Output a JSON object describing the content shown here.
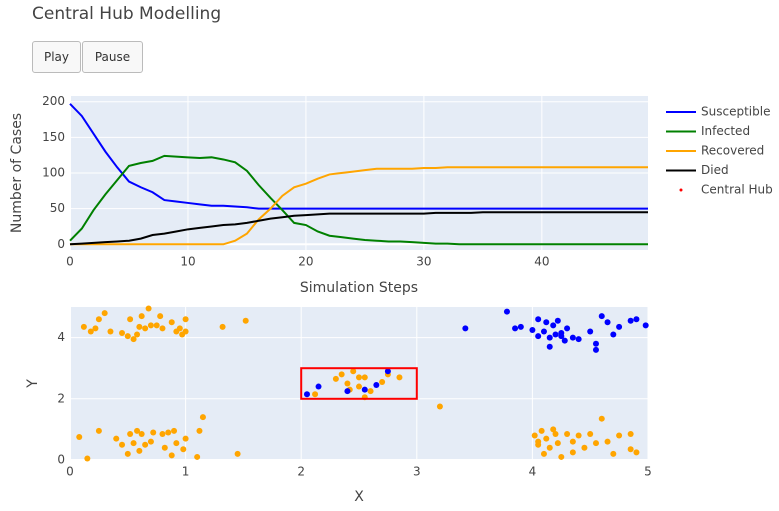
{
  "title": "Central Hub Modelling",
  "buttons": [
    "Play",
    "Pause"
  ],
  "chart_data": [
    {
      "type": "line",
      "xlabel": "Simulation Steps",
      "ylabel": "Number of Cases",
      "x": [
        0,
        1,
        2,
        3,
        4,
        5,
        6,
        7,
        8,
        9,
        10,
        11,
        12,
        13,
        14,
        15,
        16,
        17,
        18,
        19,
        20,
        21,
        22,
        23,
        24,
        25,
        26,
        27,
        28,
        29,
        30,
        31,
        32,
        33,
        34,
        35,
        36,
        37,
        38,
        39,
        40,
        41,
        42,
        43,
        44,
        45,
        46,
        47,
        48,
        49
      ],
      "xlim": [
        0,
        49
      ],
      "xticks": [
        0,
        10,
        20,
        30,
        40
      ],
      "ylim": [
        -8,
        208
      ],
      "yticks": [
        0,
        50,
        100,
        150,
        200
      ],
      "grid": true,
      "series": [
        {
          "name": "Susceptible",
          "color": "#0000ff",
          "values": [
            197,
            180,
            155,
            130,
            108,
            88,
            80,
            73,
            62,
            60,
            58,
            56,
            54,
            54,
            53,
            52,
            50,
            50,
            50,
            50,
            50,
            50,
            50,
            50,
            50,
            50,
            50,
            50,
            50,
            50,
            50,
            50,
            50,
            50,
            50,
            50,
            50,
            50,
            50,
            50,
            50,
            50,
            50,
            50,
            50,
            50,
            50,
            50,
            50,
            50
          ]
        },
        {
          "name": "Infected",
          "color": "#008000",
          "values": [
            5,
            22,
            48,
            70,
            90,
            110,
            114,
            117,
            124,
            123,
            122,
            121,
            122,
            119,
            115,
            103,
            83,
            65,
            48,
            30,
            27,
            18,
            12,
            10,
            8,
            6,
            5,
            4,
            4,
            3,
            2,
            1,
            1,
            0,
            0,
            0,
            0,
            0,
            0,
            0,
            0,
            0,
            0,
            0,
            0,
            0,
            0,
            0,
            0,
            0
          ]
        },
        {
          "name": "Recovered",
          "color": "#ffa500",
          "values": [
            0,
            0,
            0,
            0,
            0,
            0,
            0,
            0,
            0,
            0,
            0,
            0,
            0,
            0,
            5,
            15,
            35,
            50,
            68,
            80,
            85,
            92,
            98,
            100,
            102,
            104,
            106,
            106,
            106,
            106,
            107,
            107,
            108,
            108,
            108,
            108,
            108,
            108,
            108,
            108,
            108,
            108,
            108,
            108,
            108,
            108,
            108,
            108,
            108,
            108
          ]
        },
        {
          "name": "Died",
          "color": "#000000",
          "values": [
            0,
            1,
            2,
            3,
            4,
            5,
            8,
            13,
            15,
            18,
            21,
            23,
            25,
            27,
            28,
            30,
            33,
            36,
            38,
            40,
            41,
            42,
            43,
            43,
            43,
            43,
            43,
            43,
            43,
            43,
            43,
            44,
            44,
            44,
            44,
            45,
            45,
            45,
            45,
            45,
            45,
            45,
            45,
            45,
            45,
            45,
            45,
            45,
            45,
            45
          ]
        }
      ]
    },
    {
      "type": "scatter",
      "xlabel": "X",
      "ylabel": "Y",
      "xlim": [
        0,
        5
      ],
      "xticks": [
        0,
        1,
        2,
        3,
        4,
        5
      ],
      "ylim": [
        0,
        5
      ],
      "yticks": [
        0,
        2,
        4
      ],
      "grid": true,
      "hub": {
        "name": "Central Hub",
        "x0": 2,
        "x1": 3,
        "y0": 2,
        "y1": 3,
        "color": "#ff0000"
      },
      "series": [
        {
          "color": "#ffa500",
          "x": [
            0.12,
            0.18,
            0.22,
            0.25,
            0.3,
            0.35,
            0.45,
            0.5,
            0.52,
            0.55,
            0.58,
            0.6,
            0.62,
            0.65,
            0.68,
            0.7,
            0.75,
            0.78,
            0.8,
            0.88,
            0.92,
            0.95,
            0.97,
            1.0,
            1.0,
            1.32,
            1.52,
            0.08,
            0.15,
            0.25,
            0.4,
            0.45,
            0.5,
            0.52,
            0.55,
            0.58,
            0.6,
            0.62,
            0.65,
            0.7,
            0.72,
            0.8,
            0.82,
            0.85,
            0.88,
            0.9,
            0.92,
            0.98,
            1.0,
            1.1,
            1.12,
            1.15,
            1.45,
            2.12,
            2.3,
            2.35,
            2.4,
            2.42,
            2.45,
            2.5,
            2.55,
            2.55,
            2.6,
            2.7,
            2.75,
            2.85,
            2.5,
            3.2,
            4.02,
            4.05,
            4.08,
            4.1,
            4.12,
            4.15,
            4.18,
            4.2,
            4.22,
            4.25,
            4.3,
            4.35,
            4.4,
            4.45,
            4.5,
            4.55,
            4.6,
            4.65,
            4.7,
            4.75,
            4.85,
            4.85,
            4.9,
            4.35,
            4.05
          ],
          "y": [
            4.35,
            4.2,
            4.3,
            4.6,
            4.8,
            4.2,
            4.15,
            4.05,
            4.6,
            3.95,
            4.1,
            4.35,
            4.7,
            4.3,
            4.95,
            4.4,
            4.4,
            4.7,
            4.3,
            4.5,
            4.2,
            4.3,
            4.1,
            4.6,
            4.2,
            4.35,
            4.55,
            0.75,
            0.05,
            0.95,
            0.7,
            0.5,
            0.2,
            0.85,
            0.55,
            0.95,
            0.3,
            0.85,
            0.5,
            0.6,
            0.9,
            0.85,
            0.4,
            0.9,
            0.15,
            0.95,
            0.55,
            0.35,
            0.7,
            0.1,
            0.95,
            1.4,
            0.2,
            2.15,
            2.65,
            2.8,
            2.5,
            2.3,
            2.9,
            2.7,
            2.05,
            2.7,
            2.25,
            2.55,
            2.8,
            2.7,
            2.4,
            1.75,
            0.8,
            0.5,
            0.95,
            0.2,
            0.7,
            0.4,
            1.0,
            0.85,
            0.55,
            0.1,
            0.85,
            0.25,
            0.8,
            0.4,
            0.85,
            0.55,
            1.35,
            0.6,
            0.2,
            0.8,
            0.35,
            0.85,
            0.25,
            0.6,
            0.6
          ]
        },
        {
          "color": "#0000ff",
          "x": [
            3.42,
            3.78,
            3.85,
            3.9,
            4.0,
            4.05,
            4.1,
            4.12,
            4.15,
            4.15,
            4.18,
            4.2,
            4.22,
            4.25,
            4.28,
            4.3,
            4.35,
            4.4,
            4.5,
            4.55,
            4.55,
            4.6,
            4.65,
            4.7,
            4.75,
            4.85,
            4.9,
            4.98,
            4.05,
            4.25,
            2.05,
            2.15,
            2.4,
            2.55,
            2.65,
            2.75
          ],
          "y": [
            4.3,
            4.85,
            4.3,
            4.35,
            4.25,
            4.6,
            4.2,
            4.5,
            4.0,
            3.7,
            4.4,
            4.1,
            4.55,
            4.15,
            3.9,
            4.3,
            4.0,
            3.95,
            4.2,
            3.6,
            3.8,
            4.7,
            4.5,
            4.1,
            4.35,
            4.55,
            4.6,
            4.4,
            4.05,
            4.05,
            2.15,
            2.4,
            2.25,
            2.3,
            2.45,
            2.9
          ]
        }
      ]
    }
  ]
}
